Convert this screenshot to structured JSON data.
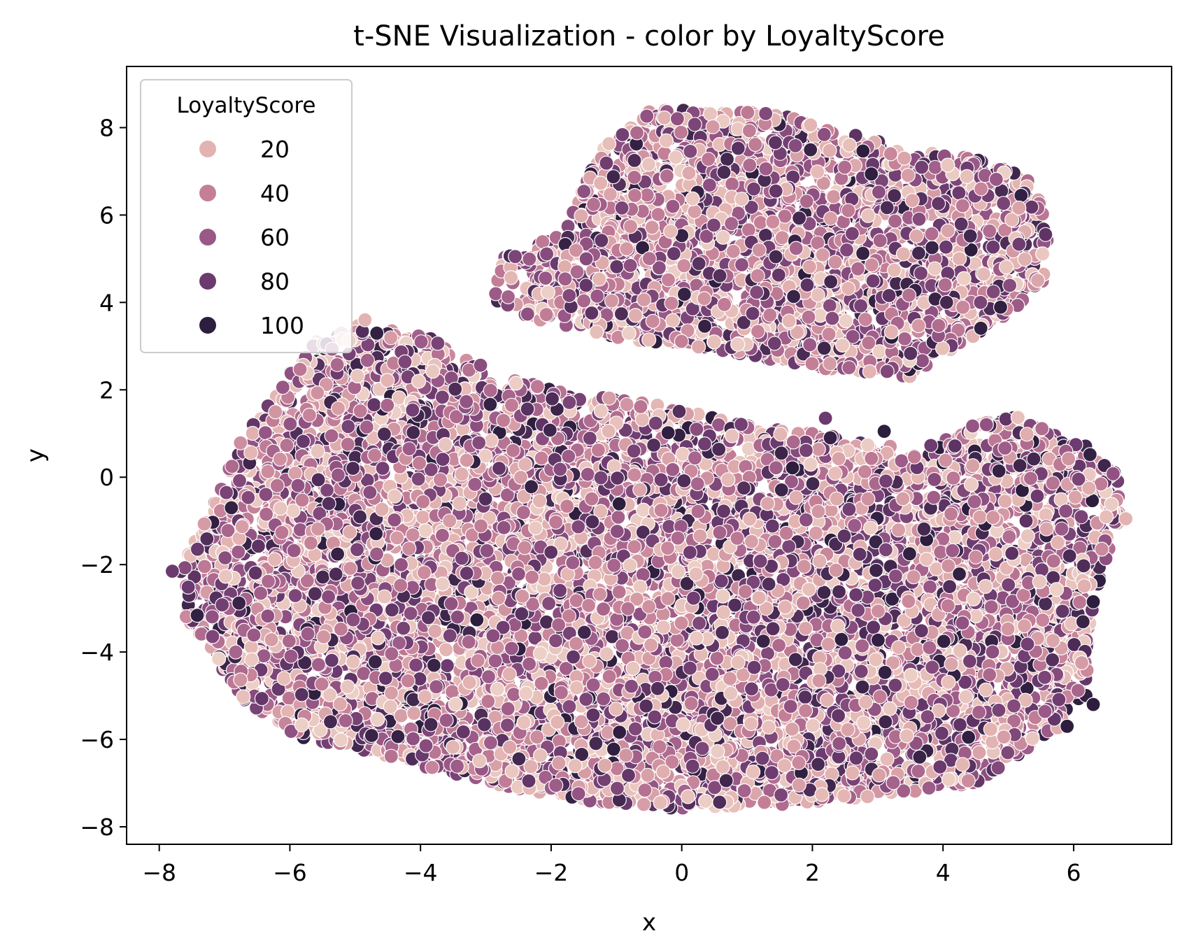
{
  "chart_data": {
    "type": "scatter",
    "title": "t-SNE Visualization - color by LoyaltyScore",
    "xlabel": "x",
    "ylabel": "y",
    "xlim": [
      -8.5,
      7.5
    ],
    "ylim": [
      -8.4,
      9.4
    ],
    "x_ticks": [
      -8,
      -6,
      -4,
      -2,
      0,
      2,
      4,
      6
    ],
    "y_ticks": [
      -8,
      -6,
      -4,
      -2,
      0,
      2,
      4,
      6,
      8
    ],
    "x_tick_labels": [
      "−8",
      "−6",
      "−4",
      "−2",
      "0",
      "2",
      "4",
      "6"
    ],
    "y_tick_labels": [
      "−8",
      "−6",
      "−4",
      "−2",
      "0",
      "2",
      "4",
      "6",
      "8"
    ],
    "grid": false,
    "hue": "LoyaltyScore",
    "legend": {
      "title": "LoyaltyScore",
      "placement": "top-left",
      "entries": [
        {
          "label": "20",
          "value": 20,
          "color": "#e3b3b1"
        },
        {
          "label": "40",
          "value": 40,
          "color": "#c47f97"
        },
        {
          "label": "60",
          "value": 60,
          "color": "#9a5887"
        },
        {
          "label": "80",
          "value": 80,
          "color": "#6b3a6e"
        },
        {
          "label": "100",
          "value": 100,
          "color": "#2d1e3e"
        }
      ]
    },
    "hue_colormap": [
      "#eccfc6",
      "#e3b3b1",
      "#c47f97",
      "#9a5887",
      "#6b3a6e",
      "#2d1e3e"
    ],
    "hue_range": [
      0,
      100
    ],
    "clusters": [
      {
        "name": "upper",
        "outline": [
          [
            -1.8,
            5.6
          ],
          [
            -1.3,
            7.4
          ],
          [
            -0.5,
            8.4
          ],
          [
            0.5,
            8.4
          ],
          [
            1.5,
            8.3
          ],
          [
            2.5,
            7.9
          ],
          [
            3.5,
            7.5
          ],
          [
            4.5,
            7.3
          ],
          [
            5.4,
            6.8
          ],
          [
            5.6,
            5.6
          ],
          [
            5.6,
            4.6
          ],
          [
            5,
            3.7
          ],
          [
            4,
            2.8
          ],
          [
            3.5,
            2.3
          ],
          [
            2,
            2.5
          ],
          [
            1,
            2.8
          ],
          [
            0,
            3
          ],
          [
            -1,
            3.2
          ],
          [
            -2,
            3.5
          ],
          [
            -2.9,
            4
          ],
          [
            -2.8,
            5
          ]
        ]
      },
      {
        "name": "lower",
        "outline": [
          [
            -7.7,
            -2.2
          ],
          [
            -7.4,
            -1.3
          ],
          [
            -6.8,
            0.7
          ],
          [
            -6.2,
            2.1
          ],
          [
            -5.6,
            3.1
          ],
          [
            -4.9,
            3.5
          ],
          [
            -4,
            3.3
          ],
          [
            -3,
            2.5
          ],
          [
            -2,
            2
          ],
          [
            -0.5,
            1.7
          ],
          [
            1,
            1.2
          ],
          [
            2.5,
            0.9
          ],
          [
            3.6,
            0.6
          ],
          [
            4.4,
            1.2
          ],
          [
            5.2,
            1.4
          ],
          [
            6.2,
            0.7
          ],
          [
            6.7,
            0
          ],
          [
            6.7,
            -1
          ],
          [
            6.3,
            -2.8
          ],
          [
            6.2,
            -5
          ],
          [
            5.6,
            -6
          ],
          [
            4.5,
            -7
          ],
          [
            3,
            -7.3
          ],
          [
            1.5,
            -7.5
          ],
          [
            0,
            -7.6
          ],
          [
            -1.5,
            -7.4
          ],
          [
            -3,
            -7
          ],
          [
            -4.5,
            -6.4
          ],
          [
            -5.8,
            -6
          ],
          [
            -6.8,
            -5
          ],
          [
            -7.2,
            -4
          ],
          [
            -7.6,
            -3.2
          ]
        ]
      }
    ],
    "outliers": [
      {
        "x": -7.8,
        "y": -2.15,
        "value": 80
      },
      {
        "x": 6.8,
        "y": -0.95,
        "value": 20
      },
      {
        "x": 6.3,
        "y": -5.2,
        "value": 100
      },
      {
        "x": 5.9,
        "y": -5.7,
        "value": 100
      },
      {
        "x": 6.3,
        "y": -2.85,
        "value": 100
      },
      {
        "x": -4.85,
        "y": 3.6,
        "value": 20
      },
      {
        "x": 2.2,
        "y": 1.35,
        "value": 80
      },
      {
        "x": 3.1,
        "y": 1.05,
        "value": 100
      }
    ],
    "approx_point_count": 11000
  }
}
